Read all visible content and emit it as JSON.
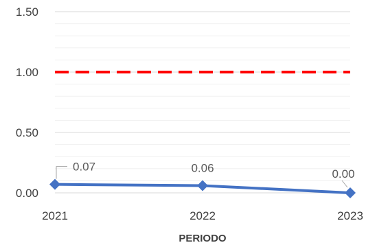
{
  "chart_data": {
    "type": "line",
    "title": "",
    "xlabel": "PERIODO",
    "ylabel": "",
    "x": [
      "2021",
      "2022",
      "2023"
    ],
    "ylim": [
      0,
      1.5
    ],
    "y_ticks": [
      "0.00",
      "0.50",
      "1.00",
      "1.50"
    ],
    "grid": true,
    "series": [
      {
        "values": [
          0.07,
          0.06,
          0.0
        ],
        "labels": [
          "0.07",
          "0.06",
          "0.00"
        ],
        "color": "#4472C4",
        "marker": "diamond"
      }
    ],
    "reference_line": {
      "value": 1.0,
      "color": "#FF0000",
      "style": "dashed"
    }
  }
}
